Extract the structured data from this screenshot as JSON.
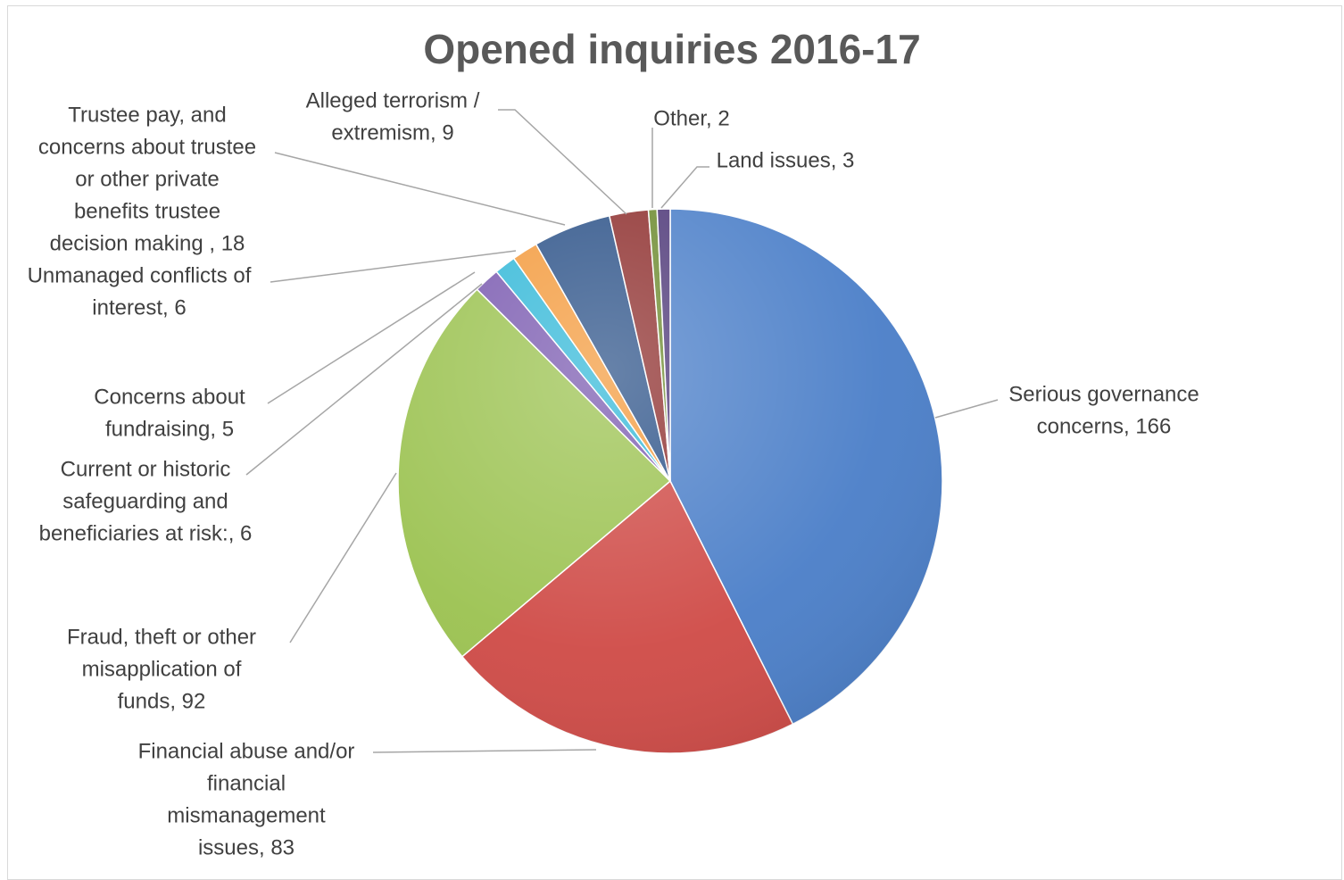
{
  "chart_data": {
    "type": "pie",
    "title": "Opened inquiries 2016-17",
    "start_angle_deg": 0,
    "direction": "clockwise",
    "slices": [
      {
        "label": "Serious governance concerns",
        "value": 166,
        "color": "#4a7ec8",
        "label_lines": [
          "Serious governance",
          "concerns, 166"
        ]
      },
      {
        "label": "Financial abuse and/or financial mismanagement issues",
        "value": 83,
        "color": "#cf4a46",
        "label_lines": [
          "Financial abuse and/or",
          "financial",
          "mismanagement",
          "issues, 83"
        ]
      },
      {
        "label": "Fraud, theft or other misapplication of funds",
        "value": 92,
        "color": "#9bc250",
        "label_lines": [
          "Fraud, theft or other",
          "misapplication of",
          "funds, 92"
        ]
      },
      {
        "label": "Current or historic safeguarding and beneficiaries at risk:",
        "value": 6,
        "color": "#7a5ab0",
        "label_lines": [
          "Current or historic",
          "safeguarding and",
          "beneficiaries at risk:, 6"
        ]
      },
      {
        "label": "Concerns about fundraising",
        "value": 5,
        "color": "#33b8d8",
        "label_lines": [
          "Concerns about",
          "fundraising, 5"
        ]
      },
      {
        "label": "Unmanaged conflicts of interest",
        "value": 6,
        "color": "#f39a3c",
        "label_lines": [
          "Unmanaged conflicts of",
          "interest, 6"
        ]
      },
      {
        "label": "Trustee pay, and concerns about trustee or other private benefits trustee decision making",
        "value": 18,
        "color": "#2c5288",
        "label_lines": [
          "Trustee pay, and",
          "concerns about trustee",
          "or other private",
          "benefits trustee",
          "decision making , 18"
        ]
      },
      {
        "label": "Alleged terrorism / extremism",
        "value": 9,
        "color": "#8e2f2e",
        "label_lines": [
          "Alleged terrorism /",
          "extremism, 9"
        ]
      },
      {
        "label": "Other",
        "value": 2,
        "color": "#6c8a2e",
        "label_lines": [
          "Other, 2"
        ]
      },
      {
        "label": "Land issues",
        "value": 3,
        "color": "#4e3878",
        "label_lines": [
          "Land issues, 3"
        ]
      }
    ]
  }
}
